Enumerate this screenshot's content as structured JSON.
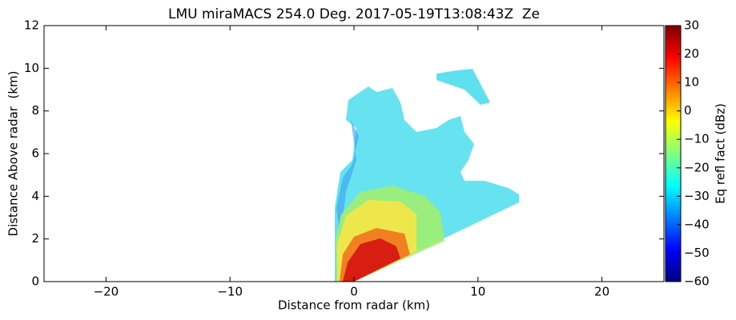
{
  "chart_data": {
    "type": "rhi",
    "title": "LMU miraMACS 254.0 Deg. 2017-05-19T13:08:43Z  Ze",
    "xlabel": "Distance from radar (km)",
    "ylabel": "Distance Above radar  (km)",
    "xlim": [
      -25,
      25
    ],
    "xticks": [
      {
        "value": -20,
        "label": "−20"
      },
      {
        "value": -10,
        "label": "−10"
      },
      0,
      10,
      20
    ],
    "ylim": [
      0,
      12
    ],
    "yticks": [
      0,
      2,
      4,
      6,
      8,
      10,
      12
    ],
    "colormap": "jet",
    "colorbar": {
      "label": "Eq refl fact (dBz)",
      "lim": [
        -60,
        30
      ],
      "ticks": [
        {
          "value": -60,
          "label": "−60"
        },
        {
          "value": -50,
          "label": "−50"
        },
        {
          "value": -40,
          "label": "−40"
        },
        {
          "value": -30,
          "label": "−30"
        },
        {
          "value": -20,
          "label": "−20"
        },
        {
          "value": -10,
          "label": "−10"
        },
        0,
        10,
        20,
        30
      ]
    }
  }
}
